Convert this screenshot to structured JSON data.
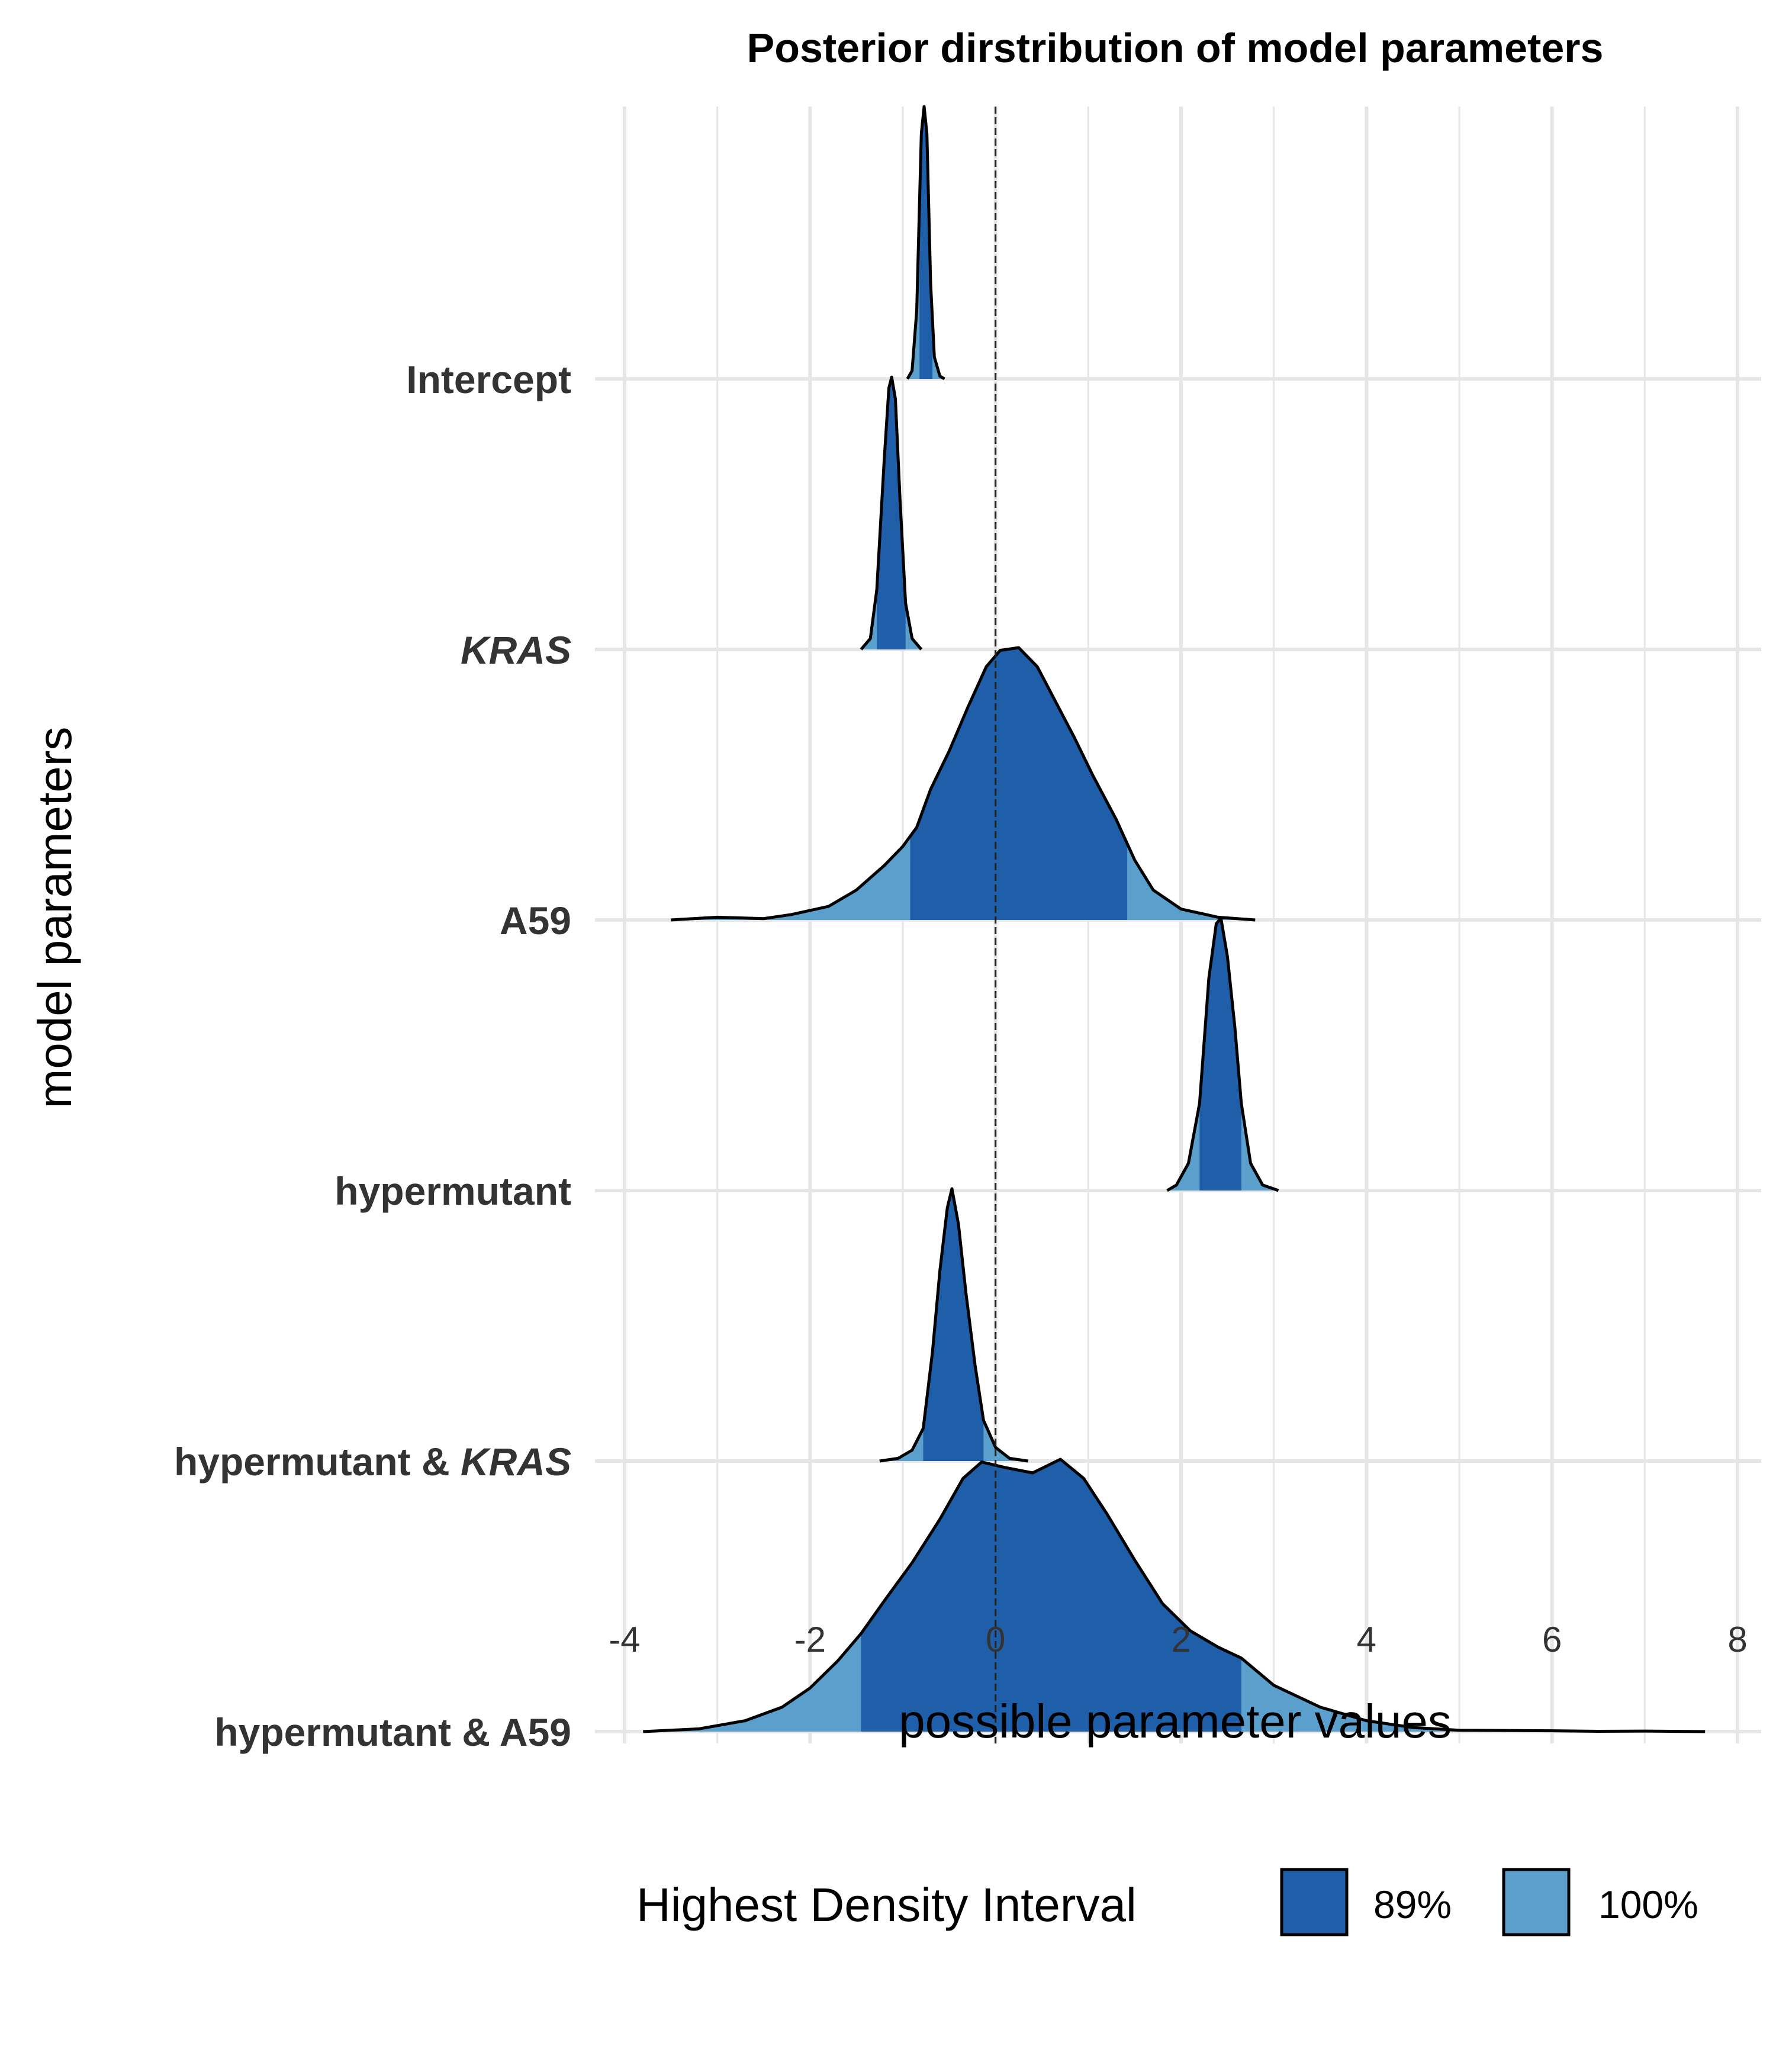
{
  "chart_data": {
    "type": "ridgeline-density",
    "title": "Posterior dirstribution of model parameters",
    "xlabel": "possible parameter values",
    "ylabel": "model parameters",
    "xlim": [
      -4,
      8
    ],
    "x_ticks": [
      -4,
      -2,
      0,
      2,
      4,
      6,
      8
    ],
    "x_tick_labels": [
      "-4",
      "-2",
      "0",
      "2",
      "4",
      "6",
      "8"
    ],
    "grid": true,
    "reference_line": {
      "x": 0,
      "style": "dashed"
    },
    "legend": {
      "title": "Highest Density Interval",
      "placement": "bottom",
      "entries": [
        {
          "label": "89%",
          "color": "#1f5ea8"
        },
        {
          "label": "100%",
          "color": "#5b9fcc"
        }
      ]
    },
    "series": [
      {
        "name": "Intercept",
        "italic": false,
        "range": [
          -0.95,
          -0.55
        ],
        "hdi89": [
          -0.82,
          -0.68
        ],
        "density": [
          [
            -0.95,
            0
          ],
          [
            -0.9,
            0.03
          ],
          [
            -0.85,
            0.25
          ],
          [
            -0.8,
            0.9
          ],
          [
            -0.77,
            1.0
          ],
          [
            -0.74,
            0.9
          ],
          [
            -0.7,
            0.35
          ],
          [
            -0.66,
            0.08
          ],
          [
            -0.6,
            0.01
          ],
          [
            -0.55,
            0
          ]
        ]
      },
      {
        "name": "KRAS",
        "italic": true,
        "range": [
          -1.45,
          -0.8
        ],
        "hdi89": [
          -1.28,
          -0.97
        ],
        "density": [
          [
            -1.45,
            0
          ],
          [
            -1.35,
            0.04
          ],
          [
            -1.28,
            0.22
          ],
          [
            -1.2,
            0.7
          ],
          [
            -1.15,
            0.96
          ],
          [
            -1.12,
            1.0
          ],
          [
            -1.08,
            0.92
          ],
          [
            -1.03,
            0.55
          ],
          [
            -0.97,
            0.17
          ],
          [
            -0.9,
            0.04
          ],
          [
            -0.8,
            0
          ]
        ]
      },
      {
        "name": "A59",
        "italic": false,
        "range": [
          -3.5,
          2.8
        ],
        "hdi89": [
          -0.92,
          1.42
        ],
        "density": [
          [
            -3.5,
            0
          ],
          [
            -3.0,
            0.01
          ],
          [
            -2.5,
            0.005
          ],
          [
            -2.2,
            0.02
          ],
          [
            -1.8,
            0.05
          ],
          [
            -1.5,
            0.11
          ],
          [
            -1.2,
            0.2
          ],
          [
            -1.0,
            0.27
          ],
          [
            -0.85,
            0.34
          ],
          [
            -0.7,
            0.48
          ],
          [
            -0.5,
            0.62
          ],
          [
            -0.3,
            0.78
          ],
          [
            -0.1,
            0.93
          ],
          [
            0.05,
            0.99
          ],
          [
            0.25,
            1.0
          ],
          [
            0.45,
            0.93
          ],
          [
            0.65,
            0.8
          ],
          [
            0.85,
            0.67
          ],
          [
            1.05,
            0.53
          ],
          [
            1.3,
            0.37
          ],
          [
            1.5,
            0.22
          ],
          [
            1.7,
            0.11
          ],
          [
            2.0,
            0.04
          ],
          [
            2.4,
            0.01
          ],
          [
            2.8,
            0
          ]
        ]
      },
      {
        "name": "hypermutant",
        "italic": false,
        "range": [
          1.85,
          3.05
        ],
        "hdi89": [
          2.2,
          2.65
        ],
        "density": [
          [
            1.85,
            0
          ],
          [
            1.95,
            0.02
          ],
          [
            2.08,
            0.1
          ],
          [
            2.2,
            0.32
          ],
          [
            2.3,
            0.78
          ],
          [
            2.38,
            0.98
          ],
          [
            2.43,
            1.0
          ],
          [
            2.5,
            0.86
          ],
          [
            2.58,
            0.6
          ],
          [
            2.65,
            0.32
          ],
          [
            2.75,
            0.1
          ],
          [
            2.88,
            0.02
          ],
          [
            3.05,
            0
          ]
        ]
      },
      {
        "name": "hypermutant & KRAS",
        "italic": true,
        "range": [
          -1.25,
          0.35
        ],
        "hdi89": [
          -0.78,
          -0.13
        ],
        "density": [
          [
            -1.25,
            0
          ],
          [
            -1.05,
            0.01
          ],
          [
            -0.9,
            0.04
          ],
          [
            -0.78,
            0.12
          ],
          [
            -0.68,
            0.4
          ],
          [
            -0.6,
            0.7
          ],
          [
            -0.52,
            0.93
          ],
          [
            -0.47,
            1.0
          ],
          [
            -0.4,
            0.87
          ],
          [
            -0.32,
            0.62
          ],
          [
            -0.22,
            0.35
          ],
          [
            -0.13,
            0.15
          ],
          [
            0.0,
            0.05
          ],
          [
            0.15,
            0.01
          ],
          [
            0.35,
            0
          ]
        ]
      },
      {
        "name": "hypermutant & A59",
        "italic": false,
        "range": [
          -3.8,
          7.65
        ],
        "hdi89": [
          -1.45,
          2.65
        ],
        "density": [
          [
            -3.8,
            0
          ],
          [
            -3.2,
            0.01
          ],
          [
            -2.7,
            0.04
          ],
          [
            -2.3,
            0.09
          ],
          [
            -2.0,
            0.16
          ],
          [
            -1.7,
            0.26
          ],
          [
            -1.45,
            0.36
          ],
          [
            -1.2,
            0.48
          ],
          [
            -0.9,
            0.62
          ],
          [
            -0.6,
            0.78
          ],
          [
            -0.35,
            0.93
          ],
          [
            -0.15,
            0.99
          ],
          [
            0.1,
            0.97
          ],
          [
            0.4,
            0.95
          ],
          [
            0.7,
            1.0
          ],
          [
            0.95,
            0.93
          ],
          [
            1.2,
            0.8
          ],
          [
            1.5,
            0.63
          ],
          [
            1.8,
            0.47
          ],
          [
            2.1,
            0.37
          ],
          [
            2.4,
            0.31
          ],
          [
            2.65,
            0.27
          ],
          [
            3.0,
            0.17
          ],
          [
            3.5,
            0.09
          ],
          [
            4.0,
            0.04
          ],
          [
            4.5,
            0.015
          ],
          [
            5.0,
            0.005
          ],
          [
            6.0,
            0.003
          ],
          [
            6.5,
            0.001
          ],
          [
            7.0,
            0.002
          ],
          [
            7.65,
            0
          ]
        ]
      }
    ]
  }
}
